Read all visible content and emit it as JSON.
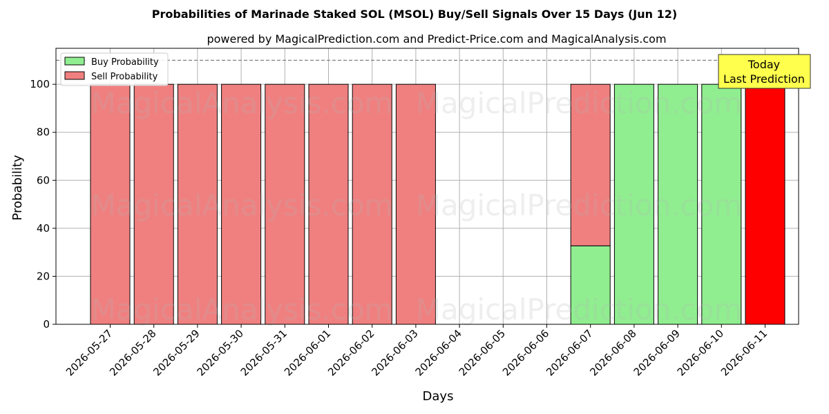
{
  "chart_data": {
    "type": "bar",
    "title": "Probabilities of Marinade Staked SOL (MSOL) Buy/Sell Signals Over 15 Days (Jun 12)",
    "subtitle": "powered by MagicalPrediction.com and Predict-Price.com and MagicalAnalysis.com",
    "xlabel": "Days",
    "ylabel": "Probability",
    "ylim": [
      0,
      115
    ],
    "yticks": [
      0,
      20,
      40,
      60,
      80,
      100
    ],
    "grid": true,
    "legend_position": "top-left",
    "reference_line": 110,
    "categories": [
      "2026-05-27",
      "2026-05-28",
      "2026-05-29",
      "2026-05-30",
      "2026-05-31",
      "2026-06-01",
      "2026-06-02",
      "2026-06-03",
      "2026-06-04",
      "2026-06-05",
      "2026-06-06",
      "2026-06-07",
      "2026-06-08",
      "2026-06-09",
      "2026-06-10",
      "2026-06-11"
    ],
    "series": [
      {
        "name": "Buy Probability",
        "color": "#90ee90",
        "values": [
          0,
          0,
          0,
          0,
          0,
          0,
          0,
          0,
          0,
          0,
          0,
          32.7,
          100,
          100,
          100,
          0
        ]
      },
      {
        "name": "Sell Probability",
        "color": "#f08080",
        "values": [
          100,
          100,
          100,
          100,
          100,
          100,
          100,
          100,
          0,
          0,
          0,
          67.3,
          0,
          0,
          0,
          100
        ]
      }
    ],
    "highlight": {
      "category": "2026-06-11",
      "color": "#ff0000"
    },
    "annotation": {
      "line1": "Today",
      "line2": "Last Prediction",
      "bg": "#ffff4d"
    },
    "watermarks": [
      "MagicalAnalysis.com",
      "MagicalPrediction.com"
    ]
  }
}
